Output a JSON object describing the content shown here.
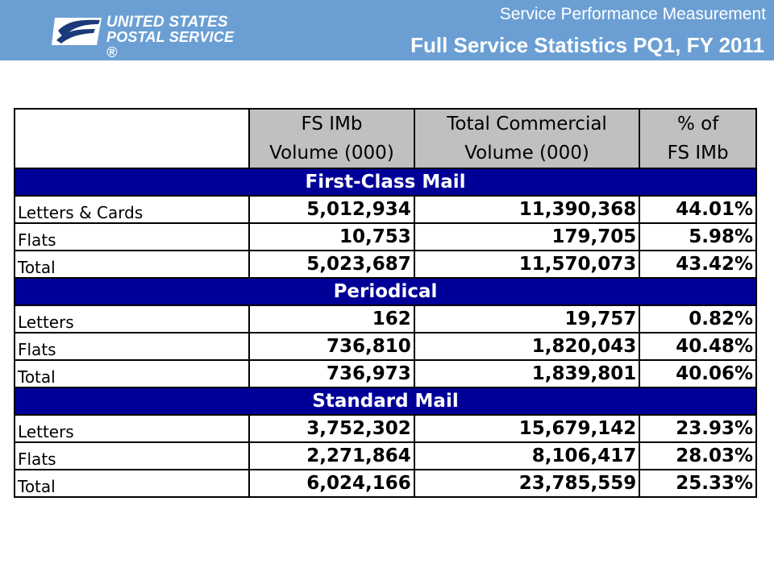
{
  "header": {
    "logo": {
      "line1": "UNITED STATES",
      "line2": "POSTAL SERVICE ®"
    },
    "subtitle": "Service Performance Measurement",
    "title": "Full Service Statistics PQ1,  FY 2011"
  },
  "table": {
    "columns": [
      {
        "line1": "",
        "line2": ""
      },
      {
        "line1": "FS IMb",
        "line2": "Volume (000)"
      },
      {
        "line1": "Total Commercial",
        "line2": "Volume (000)"
      },
      {
        "line1": "% of",
        "line2": "FS IMb"
      }
    ],
    "sections": [
      {
        "name": "First-Class Mail",
        "rows": [
          {
            "label": "Letters & Cards",
            "fs_imb": "5,012,934",
            "total": "11,390,368",
            "pct": "44.01%"
          },
          {
            "label": "Flats",
            "fs_imb": "10,753",
            "total": "179,705",
            "pct": "5.98%"
          },
          {
            "label": "Total",
            "fs_imb": "5,023,687",
            "total": "11,570,073",
            "pct": "43.42%"
          }
        ]
      },
      {
        "name": "Periodical",
        "rows": [
          {
            "label": "Letters",
            "fs_imb": "162",
            "total": "19,757",
            "pct": "0.82%"
          },
          {
            "label": "Flats",
            "fs_imb": "736,810",
            "total": "1,820,043",
            "pct": "40.48%"
          },
          {
            "label": "Total",
            "fs_imb": "736,973",
            "total": "1,839,801",
            "pct": "40.06%"
          }
        ]
      },
      {
        "name": "Standard Mail",
        "rows": [
          {
            "label": "Letters",
            "fs_imb": "3,752,302",
            "total": "15,679,142",
            "pct": "23.93%"
          },
          {
            "label": "Flats",
            "fs_imb": "2,271,864",
            "total": "8,106,417",
            "pct": "28.03%"
          },
          {
            "label": "Total",
            "fs_imb": "6,024,166",
            "total": "23,785,559",
            "pct": "25.33%"
          }
        ]
      }
    ]
  },
  "colors": {
    "banner": "#6b9fd4",
    "section_band": "#000099",
    "header_cell": "#c0c0c0"
  }
}
